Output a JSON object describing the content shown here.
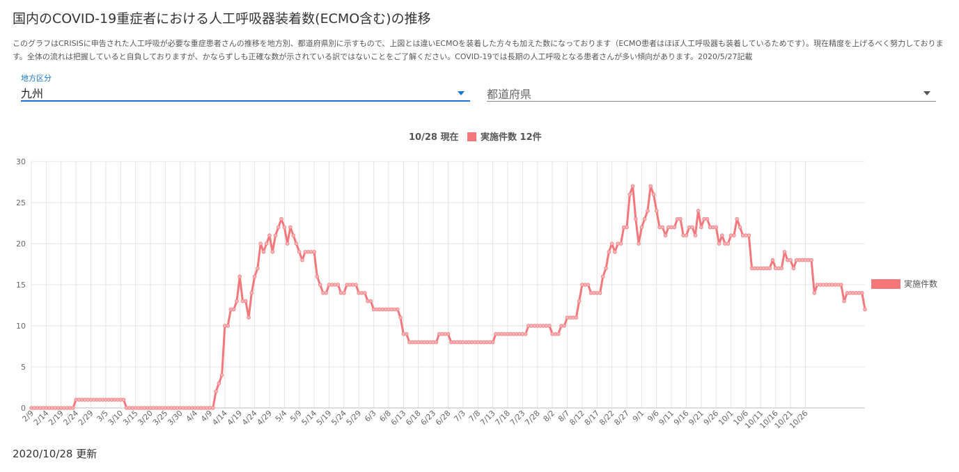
{
  "page": {
    "title": "国内のCOVID-19重症者における人工呼吸器装着数(ECMO含む)の推移",
    "description": "このグラフはCRISISに申告された人工呼吸が必要な重症患者さんの推移を地方別、都道府県別に示すもので、上図とは違いECMOを装着した方々も加えた数になっております（ECMO患者はほぼ人工呼吸器も装着しているためです）。現在精度を上げるべく努力しております。全体の流れは把握していると自負しておりますが、かならずしも正確な数が示されている訳ではないことをご了解ください。COVID-19では長期の人工呼吸となる患者さんが多い傾向があります。2020/5/27記載",
    "updated": "2020/10/28 更新"
  },
  "filters": {
    "region": {
      "label": "地方区分",
      "value": "九州"
    },
    "prefecture": {
      "placeholder": "都道府県"
    }
  },
  "colors": {
    "series": "#f4777b",
    "accent": "#1976d2",
    "grid": "#e4e4e4"
  },
  "chart_data": {
    "type": "line",
    "title_date": "10/28 現在",
    "title_series": "実施件数 12件",
    "x_start": "2020-02-09",
    "x_tick_labels": [
      "2/9",
      "2/14",
      "2/19",
      "2/24",
      "2/29",
      "3/5",
      "3/10",
      "3/15",
      "3/20",
      "3/25",
      "3/30",
      "4/4",
      "4/9",
      "4/14",
      "4/19",
      "4/24",
      "4/29",
      "5/4",
      "5/9",
      "5/14",
      "5/19",
      "5/24",
      "5/29",
      "6/3",
      "6/8",
      "6/13",
      "6/18",
      "6/23",
      "6/28",
      "7/3",
      "7/8",
      "7/13",
      "7/18",
      "7/23",
      "7/28",
      "8/2",
      "8/7",
      "8/12",
      "8/17",
      "8/22",
      "8/27",
      "9/1",
      "9/6",
      "9/11",
      "9/16",
      "9/21",
      "9/26",
      "10/1",
      "10/6",
      "10/11",
      "10/16",
      "10/21",
      "10/26"
    ],
    "ylim": [
      0,
      30
    ],
    "y_ticks": [
      0,
      5,
      10,
      15,
      20,
      25,
      30
    ],
    "grid": true,
    "legend_position": "right",
    "series": [
      {
        "name": "実施件数",
        "values": [
          0,
          0,
          0,
          0,
          0,
          0,
          0,
          0,
          0,
          0,
          0,
          0,
          0,
          0,
          0,
          1,
          1,
          1,
          1,
          1,
          1,
          1,
          1,
          1,
          1,
          1,
          1,
          1,
          1,
          1,
          1,
          1,
          0,
          0,
          0,
          0,
          0,
          0,
          0,
          0,
          0,
          0,
          0,
          0,
          0,
          0,
          0,
          0,
          0,
          0,
          0,
          0,
          0,
          0,
          0,
          0,
          0,
          0,
          0,
          0,
          0,
          0,
          2,
          3,
          4,
          10,
          10,
          12,
          12,
          13,
          16,
          13,
          13,
          11,
          14,
          16,
          17,
          20,
          19,
          20,
          21,
          19,
          21,
          22,
          23,
          22,
          20,
          22,
          21,
          20,
          19,
          18,
          19,
          19,
          19,
          19,
          16,
          15,
          14,
          14,
          15,
          15,
          15,
          15,
          14,
          14,
          15,
          15,
          15,
          15,
          14,
          14,
          14,
          13,
          13,
          12,
          12,
          12,
          12,
          12,
          12,
          12,
          12,
          12,
          11,
          9,
          9,
          8,
          8,
          8,
          8,
          8,
          8,
          8,
          8,
          8,
          8,
          9,
          9,
          9,
          9,
          8,
          8,
          8,
          8,
          8,
          8,
          8,
          8,
          8,
          8,
          8,
          8,
          8,
          8,
          8,
          9,
          9,
          9,
          9,
          9,
          9,
          9,
          9,
          9,
          9,
          9,
          10,
          10,
          10,
          10,
          10,
          10,
          10,
          10,
          9,
          9,
          9,
          10,
          10,
          11,
          11,
          11,
          11,
          13,
          15,
          15,
          15,
          14,
          14,
          14,
          14,
          16,
          17,
          19,
          20,
          19,
          20,
          20,
          22,
          22,
          26,
          27,
          23,
          20,
          22,
          23,
          24,
          27,
          26,
          24,
          22,
          22,
          21,
          22,
          22,
          22,
          23,
          23,
          21,
          21,
          22,
          22,
          21,
          24,
          22,
          23,
          23,
          22,
          22,
          22,
          20,
          21,
          20,
          20,
          21,
          21,
          23,
          22,
          21,
          21,
          21,
          17,
          17,
          17,
          17,
          17,
          17,
          17,
          18,
          17,
          17,
          17,
          19,
          18,
          18,
          17,
          18,
          18,
          18,
          18,
          18,
          18,
          14,
          15,
          15,
          15,
          15,
          15,
          15,
          15,
          15,
          15,
          13,
          14,
          14,
          14,
          14,
          14,
          14,
          12
        ]
      }
    ]
  }
}
